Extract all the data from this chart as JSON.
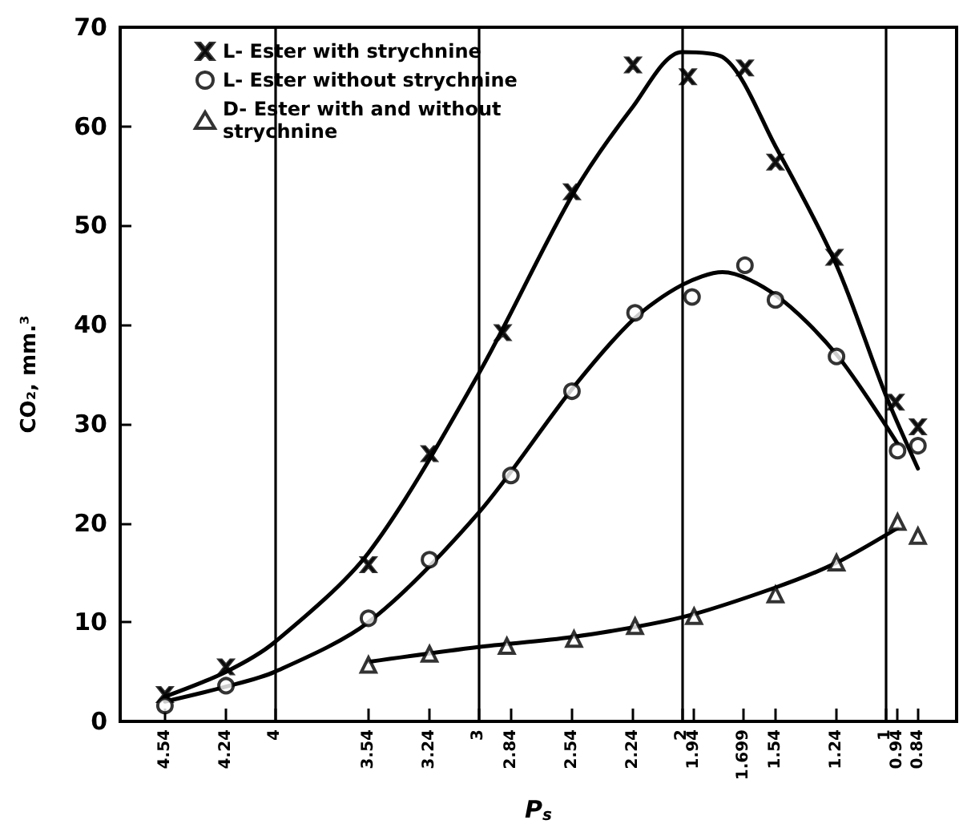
{
  "chart_data": {
    "type": "scatter",
    "xlabel": "P$_{s}$",
    "ylabel": "CO₂, mm.³",
    "xlim": [
      4.76,
      0.65
    ],
    "ylim": [
      0,
      70
    ],
    "xticks": [
      4.54,
      4.24,
      4,
      3.54,
      3.24,
      3,
      2.84,
      2.54,
      2.24,
      2,
      1.94,
      1.699,
      1.54,
      1.24,
      1,
      0.94,
      0.84
    ],
    "yticks": [
      0,
      10,
      20,
      30,
      40,
      50,
      60,
      70
    ],
    "grid": false,
    "legend": "top left",
    "ref_lines": [
      {
        "axis": "x",
        "value": 4,
        "color": "#000000"
      },
      {
        "axis": "x",
        "value": 3,
        "color": "#000000"
      },
      {
        "axis": "x",
        "value": 2,
        "color": "#000000"
      },
      {
        "axis": "x",
        "value": 1,
        "color": "#000000"
      }
    ],
    "series": [
      {
        "name": "L- Ester with strychnine",
        "marker": "cross",
        "color": "#000000",
        "x": [
          4.54,
          4.24,
          3.54,
          3.24,
          2.88,
          2.54,
          2.24,
          1.97,
          1.69,
          1.54,
          1.25,
          0.95,
          0.84
        ],
        "values": [
          2.7,
          5.5,
          15.8,
          27,
          39.2,
          53.4,
          66.2,
          65,
          65.9,
          56.4,
          46.8,
          32.2,
          29.7
        ]
      },
      {
        "name": "L- Ester without strychnine",
        "marker": "circle",
        "color": "#000000",
        "x": [
          4.54,
          4.24,
          3.54,
          3.24,
          2.84,
          2.54,
          2.23,
          1.95,
          1.69,
          1.54,
          1.24,
          0.94,
          0.84
        ],
        "values": [
          1.6,
          3.6,
          10.4,
          16.3,
          24.8,
          33.3,
          41.2,
          42.8,
          46,
          42.5,
          36.8,
          27.3,
          27.8
        ]
      },
      {
        "name": "D- Ester with and without strychnine",
        "marker": "triangle",
        "color": "#000000",
        "x": [
          3.54,
          3.24,
          2.86,
          2.53,
          2.23,
          1.94,
          1.54,
          1.24,
          0.94,
          0.84
        ],
        "values": [
          5.7,
          6.8,
          7.6,
          8.3,
          9.6,
          10.6,
          12.8,
          16,
          20.1,
          18.7
        ]
      },
      {
        "type": "line",
        "marker": "none",
        "color": "#000000",
        "x": [
          4.54,
          4.24,
          4,
          3.54,
          3,
          2.54,
          2.24,
          2,
          1.8,
          1.54,
          1.24,
          1,
          0.84
        ],
        "values": [
          2.5,
          5,
          8,
          17,
          35,
          53,
          62,
          67.5,
          67,
          58,
          46,
          33,
          25.5
        ]
      },
      {
        "type": "line",
        "marker": "none",
        "color": "#000000",
        "x": [
          4.54,
          4.24,
          4,
          3.54,
          3,
          2.54,
          2.24,
          2,
          1.8,
          1.54,
          1.24,
          0.94
        ],
        "values": [
          2,
          3.5,
          5,
          10,
          21,
          33.5,
          40.5,
          44,
          45.3,
          43,
          37,
          28
        ]
      },
      {
        "type": "line",
        "marker": "none",
        "color": "#000000",
        "x": [
          3.54,
          3,
          2.54,
          2,
          1.54,
          1.24,
          0.94
        ],
        "values": [
          6,
          7.5,
          8.5,
          10.5,
          13.5,
          16,
          19.5
        ]
      }
    ]
  }
}
